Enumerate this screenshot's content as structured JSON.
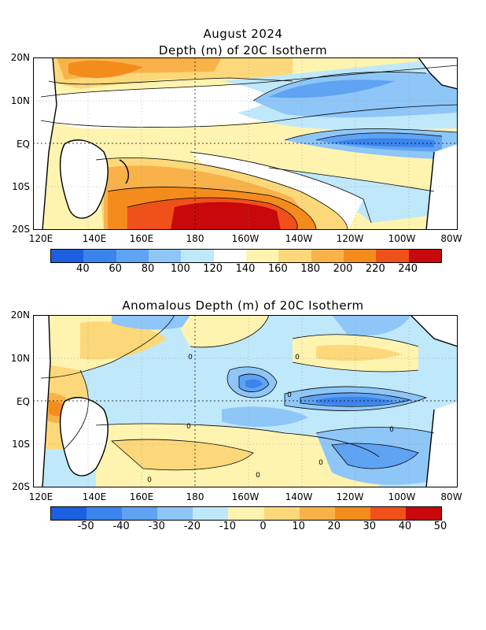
{
  "header": {
    "month": "August 2024",
    "title1": "Depth (m) of 20C Isotherm",
    "title2": "Anomalous Depth (m) of 20C Isotherm"
  },
  "lat_labels": [
    "20N",
    "10N",
    "EQ",
    "10S",
    "20S"
  ],
  "lon_labels": [
    "120E",
    "140E",
    "160E",
    "180",
    "160W",
    "140W",
    "120W",
    "100W",
    "80W"
  ],
  "colorbar1": {
    "labels": [
      "40",
      "60",
      "80",
      "100",
      "120",
      "140",
      "160",
      "180",
      "200",
      "220",
      "240"
    ],
    "colors": [
      "#1c5fe0",
      "#3b84ec",
      "#5fa3f3",
      "#8fc6f8",
      "#bfe8fa",
      "#ffffff",
      "#fff3b0",
      "#fcd87a",
      "#f9b24a",
      "#f48c1c",
      "#f0501a",
      "#c8080a"
    ]
  },
  "colorbar2": {
    "labels": [
      "-50",
      "-40",
      "-30",
      "-20",
      "-10",
      "0",
      "10",
      "20",
      "30",
      "40",
      "50"
    ],
    "colors": [
      "#1c5fe0",
      "#3b84ec",
      "#5fa3f3",
      "#8fc6f8",
      "#bfe8fa",
      "#fff3b0",
      "#fcd87a",
      "#f9b24a",
      "#f48c1c",
      "#f0501a",
      "#c8080a"
    ]
  },
  "contour_labels": [
    "0",
    "0",
    "0",
    "0",
    "0",
    "0",
    "0",
    "0"
  ]
}
